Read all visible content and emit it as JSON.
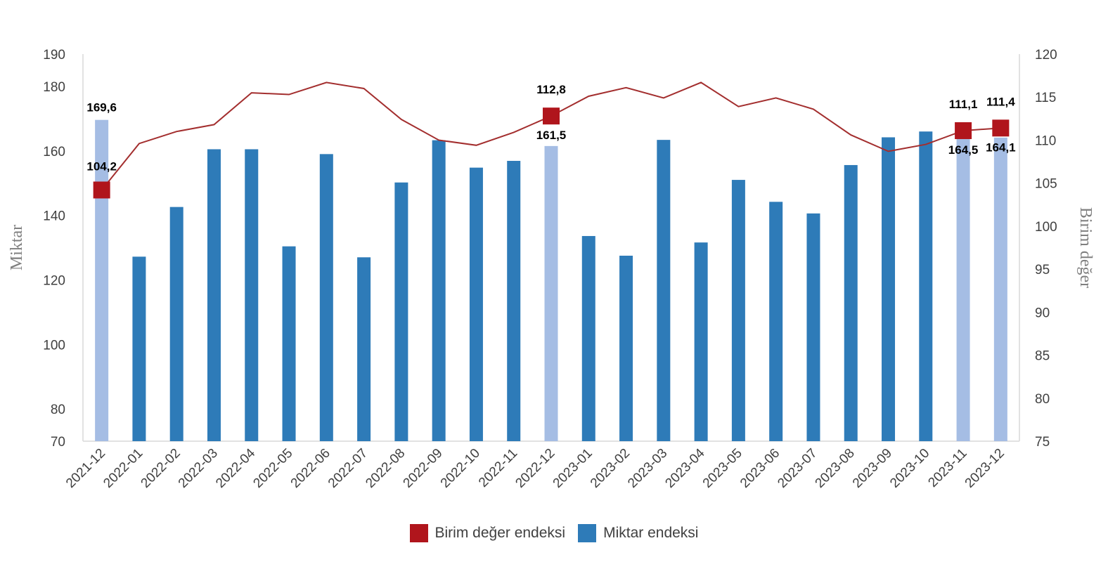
{
  "chart_data": {
    "type": "bar",
    "categories": [
      "2021-12",
      "2022-01",
      "2022-02",
      "2022-03",
      "2022-04",
      "2022-05",
      "2022-06",
      "2022-07",
      "2022-08",
      "2022-09",
      "2022-10",
      "2022-11",
      "2022-12",
      "2023-01",
      "2023-02",
      "2023-03",
      "2023-04",
      "2023-05",
      "2023-06",
      "2023-07",
      "2023-08",
      "2023-09",
      "2023-10",
      "2023-11",
      "2023-12"
    ],
    "series": [
      {
        "name": "Miktar endeksi",
        "type": "bar",
        "axis": "left",
        "values": [
          169.6,
          127.2,
          142.6,
          160.5,
          160.5,
          130.4,
          159,
          127,
          150.2,
          163.3,
          154.8,
          156.9,
          161.5,
          133.6,
          127.5,
          163.4,
          131.6,
          151,
          144.2,
          140.6,
          155.6,
          164.2,
          166,
          164.5,
          164.1
        ],
        "highlighted": [
          0,
          12,
          23,
          24
        ],
        "data_labels": {
          "0": "169,6",
          "12": "161,5",
          "23": "164,5",
          "24": "164,1"
        }
      },
      {
        "name": "Birim değer endeksi",
        "type": "line",
        "axis": "right",
        "values": [
          104.2,
          109.6,
          111,
          111.8,
          115.5,
          115.3,
          116.7,
          116,
          112.4,
          110,
          109.4,
          110.9,
          112.8,
          115.1,
          116.1,
          114.9,
          116.7,
          113.9,
          114.9,
          113.6,
          110.6,
          108.7,
          109.5,
          111.1,
          111.4
        ],
        "markers": [
          0,
          12,
          23,
          24
        ],
        "data_labels": {
          "0": "104,2",
          "12": "112,8",
          "23": "111,1",
          "24": "111,4"
        }
      }
    ],
    "y_left": {
      "label": "Miktar",
      "ticks": [
        70,
        80,
        100,
        120,
        140,
        160,
        180,
        190
      ],
      "range": [
        70,
        190
      ]
    },
    "y_right": {
      "label": "Birim değer",
      "ticks": [
        75,
        80,
        85,
        90,
        95,
        100,
        105,
        110,
        115,
        120
      ],
      "range": [
        75,
        120
      ]
    },
    "legend_position": "bottom",
    "grid": false
  },
  "colors": {
    "bar": "#2e7bb8",
    "bar_highlight": "#a5bde4",
    "line": "#a32e2e",
    "marker": "#b0151c",
    "axis": "#d9d9d9"
  },
  "legend": {
    "line_label": "Birim değer endeksi",
    "bar_label": "Miktar endeksi"
  }
}
